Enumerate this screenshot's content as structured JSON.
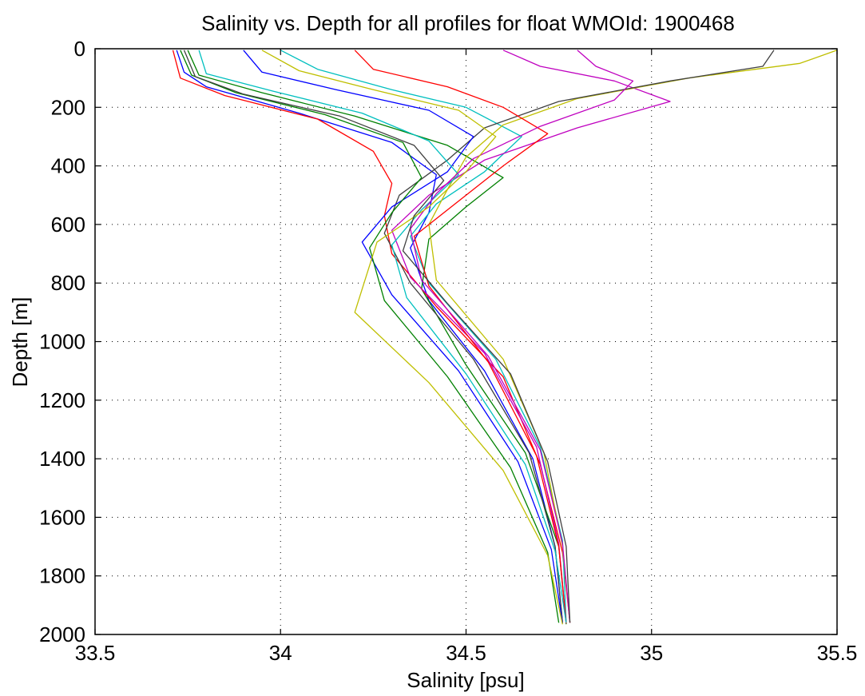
{
  "chart_data": {
    "type": "line",
    "title": "Salinity vs. Depth for all profiles for float WMOId: 1900468",
    "xlabel": "Salinity [psu]",
    "ylabel": "Depth [m]",
    "xlim": [
      33.5,
      35.5
    ],
    "ylim": [
      0,
      2000
    ],
    "y_reversed": true,
    "grid": true,
    "legend": "none",
    "xticks": [
      33.5,
      34,
      34.5,
      35,
      35.5
    ],
    "xtick_labels": [
      "33.5",
      "34",
      "34.5",
      "35",
      "35.5"
    ],
    "yticks": [
      0,
      200,
      400,
      600,
      800,
      1000,
      1200,
      1400,
      1600,
      1800,
      2000
    ],
    "ytick_labels": [
      "0",
      "200",
      "400",
      "600",
      "800",
      "1000",
      "1200",
      "1400",
      "1600",
      "1800",
      "2000"
    ],
    "colors": [
      "#0000ff",
      "#008000",
      "#ff0000",
      "#00bfbf",
      "#bf00bf",
      "#bfbf00",
      "#404040"
    ],
    "series": [
      {
        "x": [
          33.72,
          33.74,
          33.8,
          34.05,
          34.3,
          34.42,
          34.4,
          34.35,
          34.4,
          34.55,
          34.68,
          34.74,
          34.76
        ],
        "y": [
          5,
          80,
          130,
          220,
          320,
          430,
          560,
          680,
          860,
          1100,
          1400,
          1700,
          1960
        ]
      },
      {
        "x": [
          33.75,
          33.78,
          33.95,
          34.2,
          34.45,
          34.6,
          34.5,
          34.4,
          34.38,
          34.5,
          34.66,
          34.75,
          34.77
        ],
        "y": [
          5,
          90,
          150,
          230,
          330,
          440,
          540,
          650,
          820,
          1080,
          1380,
          1700,
          1965
        ]
      },
      {
        "x": [
          33.71,
          33.73,
          33.85,
          34.1,
          34.25,
          34.3,
          34.28,
          34.3,
          34.42,
          34.6,
          34.7,
          34.76,
          34.78
        ],
        "y": [
          5,
          100,
          160,
          240,
          350,
          460,
          570,
          700,
          880,
          1120,
          1420,
          1720,
          1960
        ]
      },
      {
        "x": [
          34.0,
          34.1,
          34.3,
          34.5,
          34.65,
          34.55,
          34.42,
          34.35,
          34.4,
          34.58,
          34.7,
          34.76,
          34.77
        ],
        "y": [
          5,
          70,
          140,
          200,
          300,
          420,
          530,
          640,
          800,
          1060,
          1360,
          1680,
          1960
        ]
      },
      {
        "x": [
          34.6,
          34.7,
          34.9,
          35.05,
          34.8,
          34.55,
          34.4,
          34.3,
          34.35,
          34.55,
          34.69,
          34.75,
          34.77
        ],
        "y": [
          5,
          60,
          110,
          180,
          270,
          380,
          500,
          620,
          780,
          1040,
          1360,
          1690,
          1962
        ]
      },
      {
        "x": [
          35.5,
          35.4,
          35.1,
          34.8,
          34.6,
          34.5,
          34.45,
          34.4,
          34.42,
          34.6,
          34.71,
          34.76,
          34.78
        ],
        "y": [
          5,
          50,
          100,
          170,
          260,
          370,
          480,
          600,
          790,
          1060,
          1380,
          1700,
          1960
        ]
      },
      {
        "x": [
          35.33,
          35.3,
          35.05,
          34.75,
          34.55,
          34.45,
          34.32,
          34.28,
          34.35,
          34.52,
          34.67,
          34.74,
          34.76
        ],
        "y": [
          5,
          60,
          110,
          180,
          270,
          380,
          500,
          630,
          800,
          1060,
          1380,
          1700,
          1958
        ]
      },
      {
        "x": [
          33.9,
          33.95,
          34.15,
          34.4,
          34.52,
          34.45,
          34.3,
          34.22,
          34.3,
          34.48,
          34.64,
          34.73,
          34.76
        ],
        "y": [
          5,
          80,
          140,
          210,
          300,
          420,
          540,
          660,
          840,
          1100,
          1410,
          1710,
          1962
        ]
      },
      {
        "x": [
          33.73,
          33.76,
          33.88,
          34.12,
          34.33,
          34.38,
          34.3,
          34.24,
          34.28,
          34.45,
          34.62,
          34.72,
          34.75
        ],
        "y": [
          5,
          90,
          150,
          225,
          320,
          440,
          560,
          680,
          860,
          1120,
          1430,
          1720,
          1960
        ]
      },
      {
        "x": [
          34.2,
          34.25,
          34.45,
          34.6,
          34.72,
          34.6,
          34.48,
          34.36,
          34.4,
          34.56,
          34.69,
          34.75,
          34.77
        ],
        "y": [
          5,
          70,
          130,
          200,
          290,
          400,
          520,
          640,
          810,
          1070,
          1390,
          1700,
          1962
        ]
      },
      {
        "x": [
          33.78,
          33.8,
          33.98,
          34.22,
          34.4,
          34.48,
          34.38,
          34.3,
          34.34,
          34.5,
          34.66,
          34.74,
          34.77
        ],
        "y": [
          5,
          85,
          145,
          220,
          315,
          430,
          550,
          670,
          850,
          1110,
          1420,
          1715,
          1960
        ]
      },
      {
        "x": [
          34.8,
          34.85,
          34.95,
          34.9,
          34.7,
          34.52,
          34.42,
          34.35,
          34.38,
          34.56,
          34.7,
          34.76,
          34.78
        ],
        "y": [
          5,
          60,
          110,
          175,
          265,
          375,
          495,
          615,
          790,
          1050,
          1370,
          1690,
          1960
        ]
      },
      {
        "x": [
          33.95,
          34.05,
          34.25,
          34.48,
          34.58,
          34.5,
          34.4,
          34.26,
          34.2,
          34.4,
          34.6,
          34.72,
          34.76
        ],
        "y": [
          5,
          75,
          140,
          210,
          300,
          420,
          540,
          660,
          900,
          1140,
          1440,
          1730,
          1965
        ]
      },
      {
        "x": [
          33.74,
          33.77,
          33.9,
          34.16,
          34.36,
          34.44,
          34.36,
          34.33,
          34.45,
          34.62,
          34.72,
          34.77,
          34.78
        ],
        "y": [
          5,
          95,
          155,
          230,
          330,
          450,
          570,
          690,
          870,
          1110,
          1410,
          1700,
          1960
        ]
      }
    ]
  }
}
